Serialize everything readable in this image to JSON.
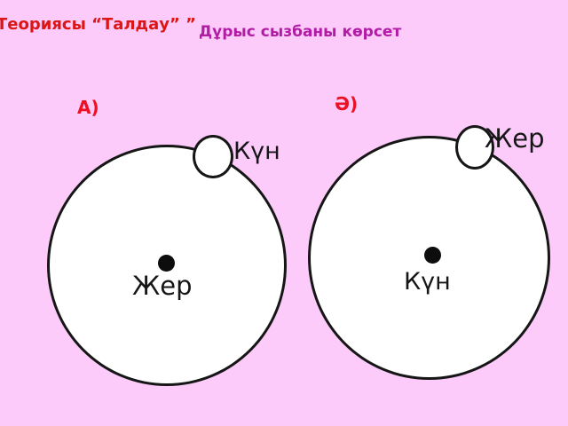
{
  "slide": {
    "title": "Теориясы “Талдау” ”",
    "subtitle": "Дұрыс сызбаны көрсет",
    "colors": {
      "background": "#fccbfa",
      "title_red": "#dc1616",
      "subtitle_magenta": "#b21ba6",
      "label_red": "#ec1022",
      "stroke_black": "#161616",
      "circle_fill": "#ffffff"
    }
  },
  "diagrams": [
    {
      "label": "А)",
      "orbiting_body": "Күн",
      "central_body": "Жер",
      "description": "geocentric-model-circle"
    },
    {
      "label": "Ә)",
      "orbiting_body": "Жер",
      "central_body": "Күн",
      "description": "heliocentric-model-circle"
    }
  ]
}
